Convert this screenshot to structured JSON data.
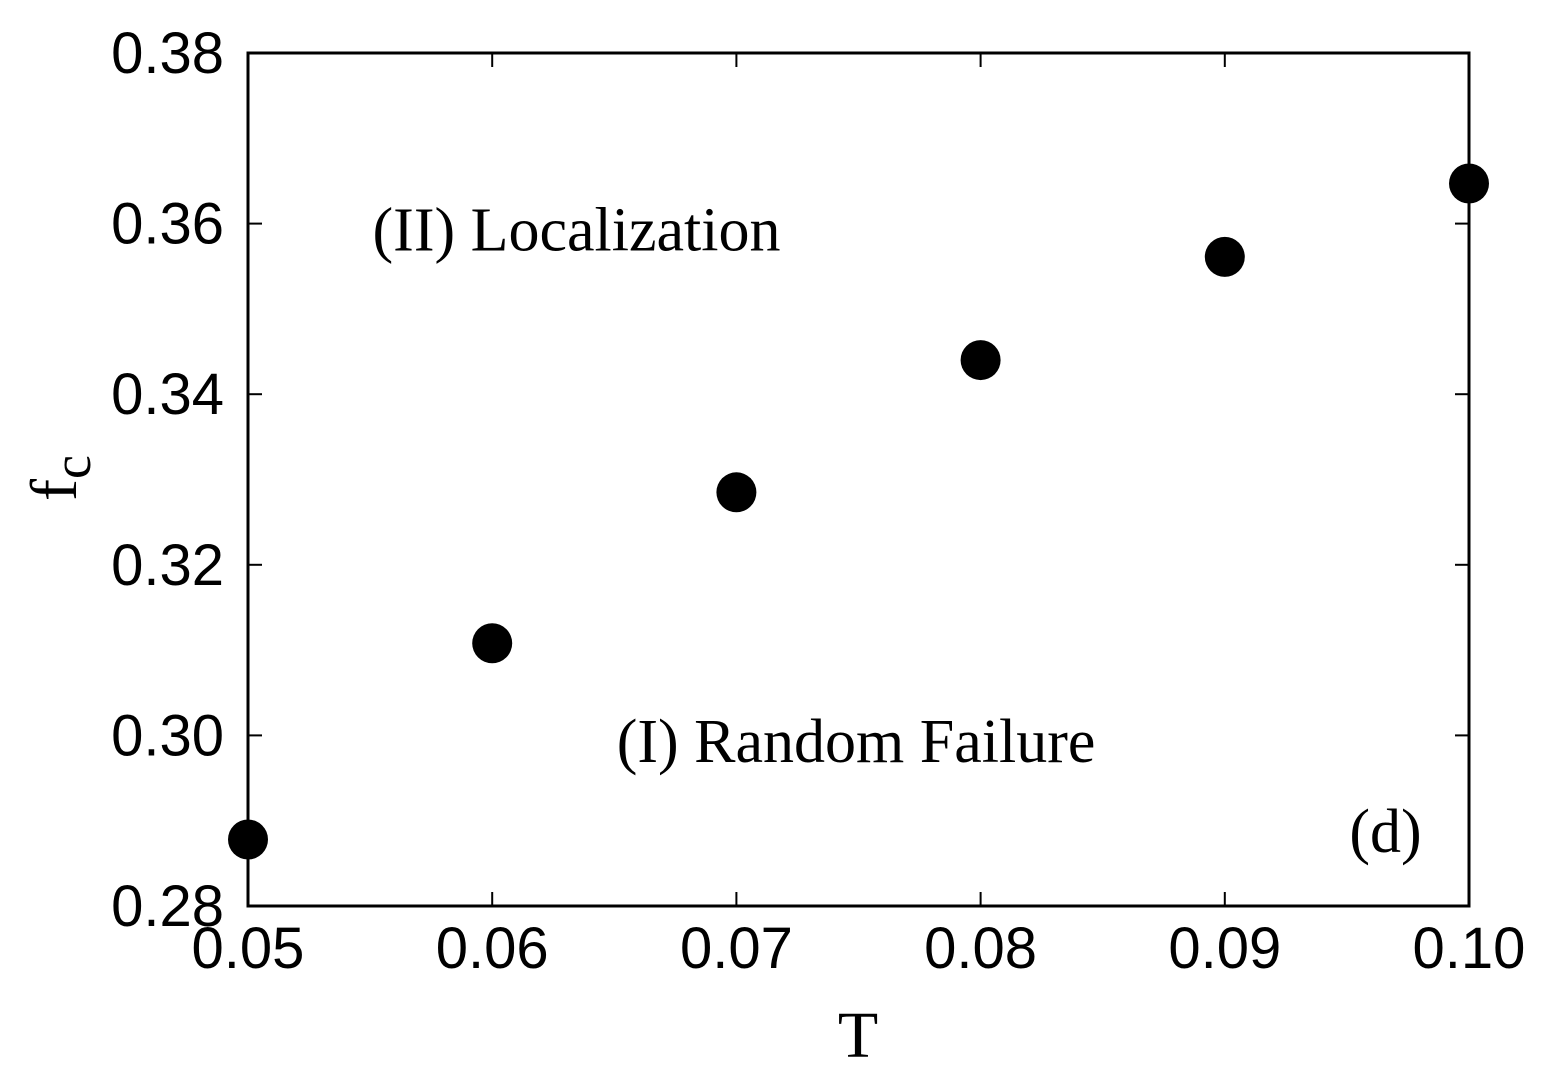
{
  "chart_data": {
    "type": "scatter",
    "title": "",
    "xlabel": "T",
    "ylabel": {
      "base": "f",
      "sub": "c"
    },
    "xlim": [
      0.05,
      0.1
    ],
    "ylim": [
      0.28,
      0.38
    ],
    "x_ticks": [
      "0.05",
      "0.06",
      "0.07",
      "0.08",
      "0.09",
      "0.10"
    ],
    "y_ticks": [
      "0.28",
      "0.30",
      "0.32",
      "0.34",
      "0.36",
      "0.38"
    ],
    "grid": false,
    "series": [
      {
        "x": [
          0.05,
          0.06,
          0.07,
          0.08,
          0.09,
          0.1
        ],
        "y": [
          0.2878,
          0.3108,
          0.3285,
          0.344,
          0.3561,
          0.3647
        ],
        "color": "#000000",
        "marker": "filled-circle"
      }
    ],
    "annotations": [
      {
        "text": "(II) Localization",
        "x": 0.0551,
        "y": 0.3592
      },
      {
        "text": "(I) Random Failure",
        "x": 0.0651,
        "y": 0.2992
      },
      {
        "text": "(d)",
        "x": 0.0951,
        "y": 0.2887
      }
    ]
  }
}
